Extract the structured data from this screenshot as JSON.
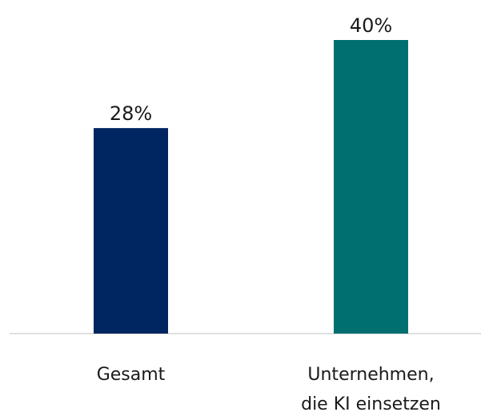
{
  "chart_data": {
    "type": "bar",
    "categories": [
      [
        "Gesamt"
      ],
      [
        "Unternehmen,",
        "die KI einsetzen"
      ]
    ],
    "values": [
      28,
      40
    ],
    "value_labels": [
      "28%",
      "40%"
    ],
    "colors": [
      "#002661",
      "#006f70"
    ],
    "ylim": [
      0,
      40
    ],
    "grid": false,
    "legend": "none"
  }
}
